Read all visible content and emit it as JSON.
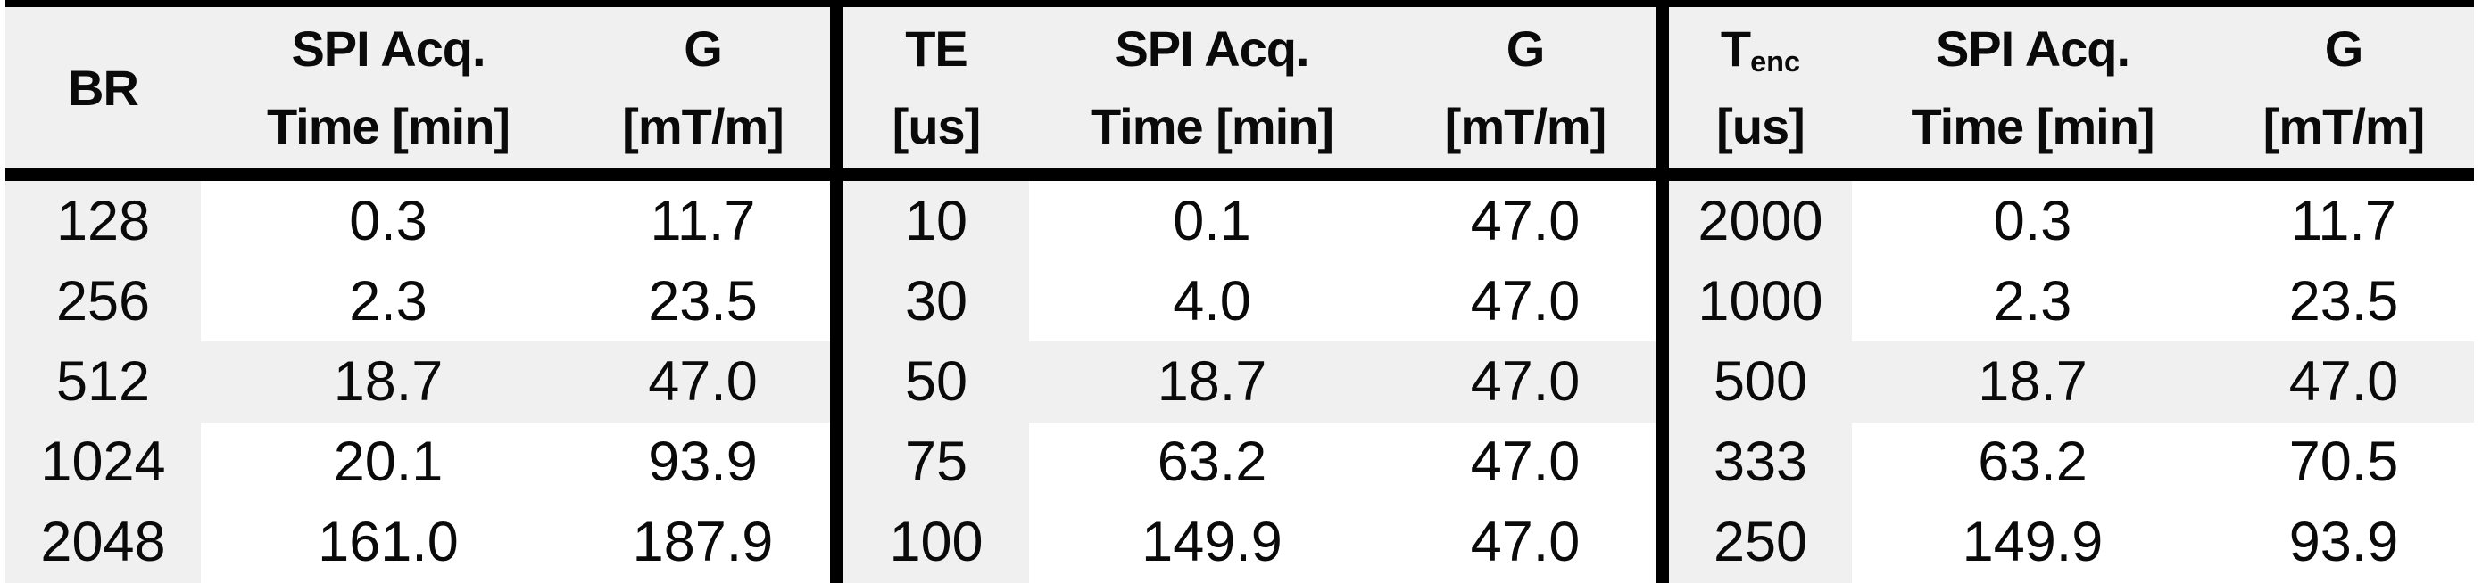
{
  "table": {
    "description": "Parameter table with three sections separated by thick vertical rules; third data row highlighted gray",
    "colors": {
      "background": "#ffffff",
      "header_bg": "#f0f0f0",
      "first_column_bg": "#f0f0f0",
      "highlight_row_bg": "#f0f0f0",
      "rule_color": "#000000",
      "text_color": "#0a0a0a"
    },
    "highlighted_row_index": 2,
    "sections": [
      {
        "name": "bandwidth",
        "headers": {
          "param": {
            "line1": "BR",
            "sub": "",
            "line2": ""
          },
          "time": {
            "line1": "SPI Acq.",
            "line2": "Time [min]"
          },
          "g": {
            "line1": "G",
            "line2": "[mT/m]"
          }
        },
        "rows": [
          {
            "param": "128",
            "time": "0.3",
            "g": "11.7"
          },
          {
            "param": "256",
            "time": "2.3",
            "g": "23.5"
          },
          {
            "param": "512",
            "time": "18.7",
            "g": "47.0"
          },
          {
            "param": "1024",
            "time": "20.1",
            "g": "93.9"
          },
          {
            "param": "2048",
            "time": "161.0",
            "g": "187.9"
          }
        ]
      },
      {
        "name": "echo-time",
        "headers": {
          "param": {
            "line1": "TE",
            "sub": "",
            "line2": "[us]"
          },
          "time": {
            "line1": "SPI Acq.",
            "line2": "Time [min]"
          },
          "g": {
            "line1": "G",
            "line2": "[mT/m]"
          }
        },
        "rows": [
          {
            "param": "10",
            "time": "0.1",
            "g": "47.0"
          },
          {
            "param": "30",
            "time": "4.0",
            "g": "47.0"
          },
          {
            "param": "50",
            "time": "18.7",
            "g": "47.0"
          },
          {
            "param": "75",
            "time": "63.2",
            "g": "47.0"
          },
          {
            "param": "100",
            "time": "149.9",
            "g": "47.0"
          }
        ]
      },
      {
        "name": "encoding-time",
        "headers": {
          "param": {
            "line1": "T",
            "sub": "enc",
            "line2": "[us]"
          },
          "time": {
            "line1": "SPI Acq.",
            "line2": "Time [min]"
          },
          "g": {
            "line1": "G",
            "line2": "[mT/m]"
          }
        },
        "rows": [
          {
            "param": "2000",
            "time": "0.3",
            "g": "11.7"
          },
          {
            "param": "1000",
            "time": "2.3",
            "g": "23.5"
          },
          {
            "param": "500",
            "time": "18.7",
            "g": "47.0"
          },
          {
            "param": "333",
            "time": "63.2",
            "g": "70.5"
          },
          {
            "param": "250",
            "time": "149.9",
            "g": "93.9"
          }
        ]
      }
    ]
  }
}
